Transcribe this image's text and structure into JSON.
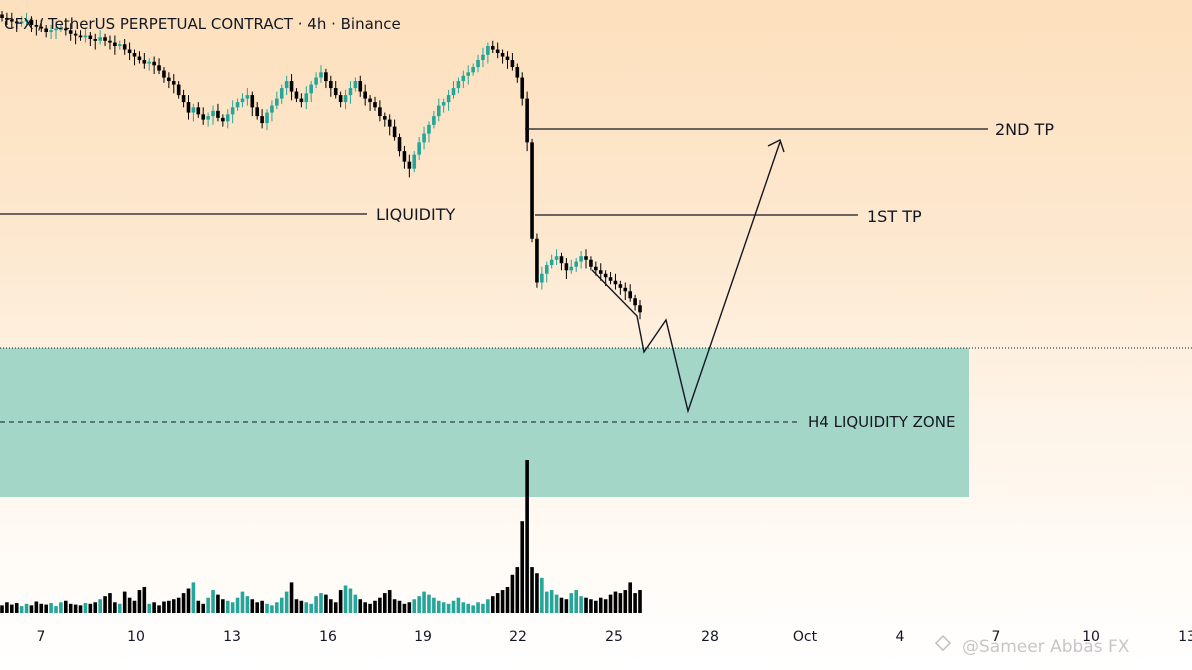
{
  "header": {
    "title": "CFX / TetherUS PERPETUAL CONTRACT · 4h · Binance"
  },
  "watermark": "@Sameer Abbas FX",
  "colors": {
    "bull": "#26a69a",
    "bear": "#000000",
    "zone": "#9fd4c5",
    "line": "#131722"
  },
  "chart_data": {
    "type": "candlestick",
    "x_ticks": [
      "7",
      "10",
      "13",
      "16",
      "19",
      "22",
      "25",
      "28",
      "Oct",
      "4",
      "7",
      "10",
      "13"
    ],
    "annotations": [
      "2ND TP",
      "1ST TP",
      "LIQUIDITY",
      "H4 LIQUIDITY ZONE"
    ],
    "price_series": [
      106,
      105,
      104,
      103,
      104,
      105,
      102,
      101,
      100,
      98,
      99,
      100,
      100,
      99,
      97,
      96,
      95,
      96,
      94,
      93,
      95,
      93,
      92,
      90,
      91,
      88,
      86,
      84,
      82,
      80,
      81,
      79,
      76,
      72,
      70,
      68,
      62,
      58,
      52,
      55,
      51,
      48,
      50,
      53,
      49,
      47,
      51,
      55,
      58,
      60,
      62,
      55,
      50,
      46,
      52,
      56,
      60,
      66,
      70,
      64,
      60,
      58,
      63,
      68,
      72,
      75,
      70,
      66,
      62,
      58,
      62,
      66,
      70,
      64,
      60,
      58,
      55,
      50,
      48,
      44,
      38,
      30,
      24,
      20,
      28,
      35,
      40,
      45,
      50,
      56,
      58,
      62,
      66,
      70,
      73,
      75,
      78,
      82,
      85,
      90,
      88,
      86,
      84,
      82,
      78,
      72,
      60,
      35,
      -20,
      -45,
      -40,
      -35,
      -32,
      -30,
      -34,
      -38,
      -36,
      -33,
      -30,
      -32,
      -36,
      -38,
      -40,
      -42,
      -44,
      -46,
      -48,
      -50,
      -54,
      -58,
      -62
    ],
    "volume_series": [
      10,
      14,
      11,
      13,
      9,
      12,
      10,
      15,
      12,
      11,
      13,
      9,
      14,
      16,
      12,
      11,
      10,
      13,
      12,
      14,
      18,
      22,
      26,
      14,
      12,
      28,
      20,
      16,
      30,
      34,
      12,
      14,
      10,
      15,
      16,
      18,
      20,
      26,
      32,
      40,
      16,
      12,
      20,
      30,
      24,
      18,
      16,
      14,
      20,
      28,
      22,
      18,
      14,
      16,
      12,
      10,
      14,
      20,
      28,
      40,
      18,
      16,
      14,
      12,
      22,
      26,
      24,
      18,
      14,
      30,
      36,
      32,
      24,
      18,
      14,
      12,
      16,
      20,
      26,
      30,
      18,
      16,
      12,
      14,
      18,
      22,
      28,
      24,
      20,
      16,
      14,
      12,
      16,
      20,
      14,
      12,
      10,
      14,
      12,
      18,
      22,
      26,
      30,
      34,
      50,
      60,
      120,
      200,
      60,
      52,
      46,
      28,
      30,
      24,
      20,
      18,
      26,
      30,
      22,
      20,
      18,
      16,
      20,
      18,
      24,
      28,
      26,
      30,
      40,
      26,
      30
    ]
  }
}
